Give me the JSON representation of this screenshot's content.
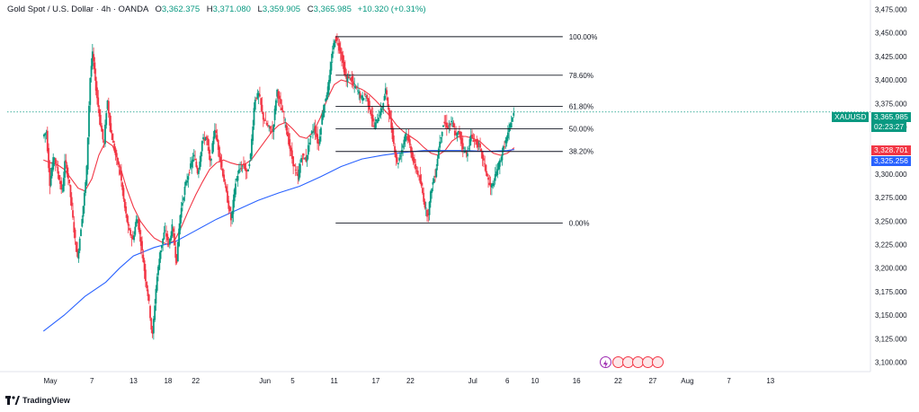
{
  "header": {
    "symbol": "Gold Spot / U.S. Dollar · 4h · OANDA",
    "open_label": "O",
    "open": "3,362.375",
    "high_label": "H",
    "high": "3,371.080",
    "low_label": "L",
    "low": "3,359.905",
    "close_label": "C",
    "close": "3,365.985",
    "change": "+10.320 (+0.31%)"
  },
  "badges": {
    "symbol_tag": "XAUUSD",
    "price": "3,365.985",
    "countdown": "02:23:27",
    "ma_red_value": "3,328.701",
    "ma_blue_value": "3,325.256"
  },
  "brand": {
    "name": "TradingView"
  },
  "colors": {
    "up": "#089981",
    "down": "#f23645",
    "ma_short": "#f23645",
    "ma_long": "#2962ff",
    "fib": "#131722",
    "price_line": "#089981"
  },
  "chart_data": {
    "type": "candlestick",
    "symbol": "XAUUSD",
    "timeframe": "4h",
    "y_range": [
      3090,
      3485
    ],
    "y_ticks": [
      3100,
      3125,
      3150,
      3175,
      3200,
      3225,
      3250,
      3275,
      3300,
      3325,
      3350,
      3375,
      3400,
      3425,
      3450,
      3475
    ],
    "y_tick_labels": [
      "3,100.000",
      "3,125.000",
      "3,150.000",
      "3,175.000",
      "3,200.000",
      "3,225.000",
      "3,250.000",
      "3,275.000",
      "3,300.000",
      "3,325.000",
      "3,350.000",
      "3,375.000",
      "3,400.000",
      "3,425.000",
      "3,450.000",
      "3,475.000"
    ],
    "x_ticks": [
      {
        "label": "May",
        "day": 1
      },
      {
        "label": "7",
        "day": 7
      },
      {
        "label": "13",
        "day": 13
      },
      {
        "label": "18",
        "day": 18
      },
      {
        "label": "22",
        "day": 22
      },
      {
        "label": "Jun",
        "day": 32
      },
      {
        "label": "5",
        "day": 36
      },
      {
        "label": "11",
        "day": 42
      },
      {
        "label": "17",
        "day": 48
      },
      {
        "label": "22",
        "day": 53
      },
      {
        "label": "Jul",
        "day": 62
      },
      {
        "label": "6",
        "day": 67
      },
      {
        "label": "10",
        "day": 71
      },
      {
        "label": "16",
        "day": 77
      },
      {
        "label": "22",
        "day": 83
      },
      {
        "label": "27",
        "day": 88
      },
      {
        "label": "Aug",
        "day": 93
      },
      {
        "label": "7",
        "day": 99
      },
      {
        "label": "13",
        "day": 105
      }
    ],
    "price_path": [
      [
        0,
        3340
      ],
      [
        0.5,
        3345
      ],
      [
        1,
        3290
      ],
      [
        1.6,
        3320
      ],
      [
        2.2,
        3300
      ],
      [
        2.8,
        3280
      ],
      [
        3.2,
        3315
      ],
      [
        3.8,
        3290
      ],
      [
        4.5,
        3240
      ],
      [
        5,
        3210
      ],
      [
        5.6,
        3250
      ],
      [
        6.3,
        3300
      ],
      [
        6.8,
        3400
      ],
      [
        7.2,
        3430
      ],
      [
        7.6,
        3395
      ],
      [
        8.2,
        3360
      ],
      [
        8.8,
        3330
      ],
      [
        9.3,
        3380
      ],
      [
        9.8,
        3345
      ],
      [
        10.5,
        3320
      ],
      [
        11.2,
        3300
      ],
      [
        11.8,
        3265
      ],
      [
        12.4,
        3240
      ],
      [
        13,
        3230
      ],
      [
        13.6,
        3255
      ],
      [
        14.2,
        3225
      ],
      [
        14.8,
        3190
      ],
      [
        15.3,
        3165
      ],
      [
        15.8,
        3125
      ],
      [
        16.4,
        3185
      ],
      [
        17,
        3220
      ],
      [
        17.6,
        3240
      ],
      [
        18.2,
        3225
      ],
      [
        18.7,
        3245
      ],
      [
        19.3,
        3205
      ],
      [
        19.8,
        3255
      ],
      [
        20.5,
        3285
      ],
      [
        21.2,
        3305
      ],
      [
        21.8,
        3320
      ],
      [
        22.4,
        3300
      ],
      [
        23,
        3335
      ],
      [
        23.6,
        3340
      ],
      [
        24.2,
        3310
      ],
      [
        24.8,
        3350
      ],
      [
        25.4,
        3325
      ],
      [
        26,
        3300
      ],
      [
        26.6,
        3275
      ],
      [
        27.2,
        3250
      ],
      [
        27.8,
        3290
      ],
      [
        28.4,
        3305
      ],
      [
        29,
        3310
      ],
      [
        29.5,
        3300
      ],
      [
        30,
        3320
      ],
      [
        30.6,
        3380
      ],
      [
        31.2,
        3385
      ],
      [
        31.8,
        3360
      ],
      [
        32.5,
        3350
      ],
      [
        33.2,
        3345
      ],
      [
        33.8,
        3390
      ],
      [
        34.4,
        3370
      ],
      [
        35,
        3355
      ],
      [
        35.6,
        3330
      ],
      [
        36.2,
        3310
      ],
      [
        36.8,
        3295
      ],
      [
        37.4,
        3320
      ],
      [
        38,
        3315
      ],
      [
        38.6,
        3340
      ],
      [
        39.2,
        3350
      ],
      [
        39.8,
        3330
      ],
      [
        40.3,
        3360
      ],
      [
        40.8,
        3380
      ],
      [
        41.3,
        3395
      ],
      [
        41.8,
        3430
      ],
      [
        42.2,
        3445
      ],
      [
        42.6,
        3440
      ],
      [
        43,
        3430
      ],
      [
        43.4,
        3415
      ],
      [
        43.8,
        3400
      ],
      [
        44.3,
        3405
      ],
      [
        44.8,
        3395
      ],
      [
        45.4,
        3390
      ],
      [
        46,
        3380
      ],
      [
        46.6,
        3385
      ],
      [
        47.2,
        3370
      ],
      [
        47.8,
        3350
      ],
      [
        48.4,
        3360
      ],
      [
        49,
        3370
      ],
      [
        49.5,
        3390
      ],
      [
        50,
        3365
      ],
      [
        50.6,
        3335
      ],
      [
        51.2,
        3310
      ],
      [
        51.8,
        3325
      ],
      [
        52.4,
        3345
      ],
      [
        53,
        3330
      ],
      [
        53.6,
        3310
      ],
      [
        54.2,
        3300
      ],
      [
        54.7,
        3285
      ],
      [
        55.2,
        3265
      ],
      [
        55.6,
        3255
      ],
      [
        56.1,
        3285
      ],
      [
        56.7,
        3300
      ],
      [
        57.3,
        3335
      ],
      [
        57.9,
        3355
      ],
      [
        58.5,
        3350
      ],
      [
        59.1,
        3355
      ],
      [
        59.6,
        3340
      ],
      [
        60.1,
        3345
      ],
      [
        60.6,
        3330
      ],
      [
        61.2,
        3320
      ],
      [
        61.8,
        3340
      ],
      [
        62.4,
        3335
      ],
      [
        63,
        3330
      ],
      [
        63.6,
        3315
      ],
      [
        64.1,
        3300
      ],
      [
        64.6,
        3285
      ],
      [
        65.1,
        3290
      ],
      [
        65.6,
        3305
      ],
      [
        66.1,
        3315
      ],
      [
        66.6,
        3330
      ],
      [
        67.1,
        3340
      ],
      [
        67.6,
        3355
      ],
      [
        68.1,
        3366
      ]
    ],
    "series": [
      {
        "name": "",
        "points": [
          [
            0,
            3315
          ],
          [
            1,
            3312
          ],
          [
            2,
            3310
          ],
          [
            3,
            3305
          ],
          [
            4,
            3295
          ],
          [
            5,
            3285
          ],
          [
            6,
            3282
          ],
          [
            7,
            3295
          ],
          [
            8,
            3320
          ],
          [
            9,
            3335
          ],
          [
            10,
            3330
          ],
          [
            11,
            3310
          ],
          [
            12,
            3285
          ],
          [
            13,
            3265
          ],
          [
            14,
            3250
          ],
          [
            15,
            3240
          ],
          [
            16,
            3232
          ],
          [
            17,
            3228
          ],
          [
            18,
            3225
          ],
          [
            19,
            3230
          ],
          [
            20,
            3245
          ],
          [
            21,
            3262
          ],
          [
            22,
            3278
          ],
          [
            23,
            3292
          ],
          [
            24,
            3305
          ],
          [
            25,
            3312
          ],
          [
            26,
            3315
          ],
          [
            27,
            3312
          ],
          [
            28,
            3310
          ],
          [
            29,
            3310
          ],
          [
            30,
            3315
          ],
          [
            31,
            3325
          ],
          [
            32,
            3335
          ],
          [
            33,
            3345
          ],
          [
            34,
            3352
          ],
          [
            35,
            3355
          ],
          [
            36,
            3348
          ],
          [
            37,
            3340
          ],
          [
            38,
            3338
          ],
          [
            39,
            3345
          ],
          [
            40,
            3360
          ],
          [
            41,
            3380
          ],
          [
            42,
            3395
          ],
          [
            43,
            3400
          ],
          [
            44,
            3398
          ],
          [
            45,
            3393
          ],
          [
            46,
            3390
          ],
          [
            47,
            3385
          ],
          [
            48,
            3378
          ],
          [
            49,
            3370
          ],
          [
            50,
            3362
          ],
          [
            51,
            3352
          ],
          [
            52,
            3345
          ],
          [
            53,
            3340
          ],
          [
            54,
            3335
          ],
          [
            55,
            3328
          ],
          [
            56,
            3322
          ],
          [
            57,
            3320
          ],
          [
            58,
            3325
          ],
          [
            59,
            3335
          ],
          [
            60,
            3340
          ],
          [
            61,
            3340
          ],
          [
            62,
            3338
          ],
          [
            63,
            3335
          ],
          [
            64,
            3328
          ],
          [
            65,
            3322
          ],
          [
            66,
            3320
          ],
          [
            67,
            3322
          ],
          [
            68,
            3328
          ]
        ]
      },
      {
        "name": "",
        "points": [
          [
            0,
            3133
          ],
          [
            3,
            3150
          ],
          [
            6,
            3170
          ],
          [
            9,
            3185
          ],
          [
            11,
            3200
          ],
          [
            13,
            3213
          ],
          [
            16,
            3222
          ],
          [
            19,
            3228
          ],
          [
            22,
            3240
          ],
          [
            25,
            3252
          ],
          [
            28,
            3262
          ],
          [
            31,
            3272
          ],
          [
            34,
            3280
          ],
          [
            37,
            3287
          ],
          [
            40,
            3297
          ],
          [
            43,
            3308
          ],
          [
            46,
            3316
          ],
          [
            49,
            3320
          ],
          [
            52,
            3323
          ],
          [
            55,
            3325
          ],
          [
            58,
            3325
          ],
          [
            61,
            3325
          ],
          [
            64,
            3324
          ],
          [
            67,
            3325
          ],
          [
            68,
            3326
          ]
        ]
      }
    ],
    "fibonacci": {
      "x_start": 42.2,
      "x_end": 75,
      "levels": [
        {
          "label": "100.00%",
          "price": 3446
        },
        {
          "label": "78.60%",
          "price": 3405
        },
        {
          "label": "61.80%",
          "price": 3372
        },
        {
          "label": "50.00%",
          "price": 3348
        },
        {
          "label": "38.20%",
          "price": 3324
        },
        {
          "label": "0.00%",
          "price": 3248
        }
      ]
    },
    "last_price": 3365.985,
    "grid": false
  }
}
